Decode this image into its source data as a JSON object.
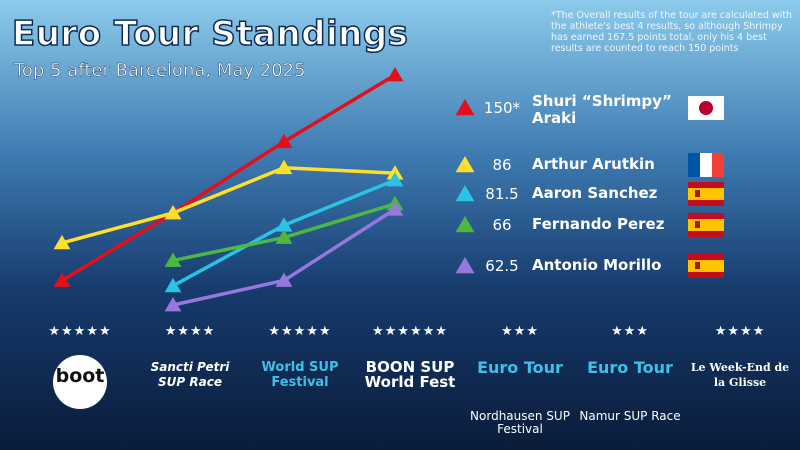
{
  "chart_data": {
    "type": "line",
    "title": "Euro Tour Standings",
    "subtitle": "Top 5 after Barcelona, May 2025",
    "footnote": "*The Overall results of the tour are calculated with the athlete's best 4 results, so although Shrimpy has earned 167.5 points total, only his 4 best results are counted to reach 150 points",
    "categories": [
      "boot",
      "Sancti Petri SUP Race",
      "World SUP Festival",
      "BOON SUP World Fest",
      "Euro Tour",
      "Euro Tour",
      "Le Week-End de la Glisse"
    ],
    "category_captions": [
      null,
      null,
      null,
      null,
      "Nordhausen SUP Festival",
      "Namur SUP Race",
      null
    ],
    "category_stars": [
      "★★★★★",
      "★★★★",
      "★★★★★",
      "★★★★★★",
      "★★★",
      "★★★",
      "★★★★"
    ],
    "ylim": [
      0,
      150
    ],
    "series": [
      {
        "name": "Shuri “Shrimpy” Araki",
        "color": "#e3101c",
        "values": [
          16,
          60,
          106.5,
          150,
          null,
          null,
          null
        ],
        "value_labels": [
          null,
          null,
          null,
          "150*",
          null,
          null,
          null
        ]
      },
      {
        "name": "Arthur Arutkin",
        "color": "#ffdf2e",
        "values": [
          40.5,
          60,
          89.5,
          86,
          null,
          null,
          null
        ],
        "value_labels": [
          null,
          null,
          null,
          "86",
          null,
          null,
          null
        ]
      },
      {
        "name": "Aaron Sanchez",
        "color": "#2ac3e8",
        "values": [
          null,
          12.5,
          52,
          81.5,
          null,
          null,
          null
        ],
        "value_labels": [
          null,
          null,
          null,
          "81.5",
          null,
          null,
          null
        ]
      },
      {
        "name": "Fernando Perez",
        "color": "#4cb842",
        "values": [
          null,
          29,
          44,
          66,
          null,
          null,
          null
        ],
        "value_labels": [
          null,
          null,
          null,
          "66",
          null,
          null,
          null
        ]
      },
      {
        "name": "Antonio Morillo",
        "color": "#9478de",
        "values": [
          null,
          0,
          16,
          62.5,
          null,
          null,
          null
        ],
        "value_labels": [
          null,
          null,
          null,
          "62.5",
          null,
          null,
          null
        ]
      }
    ]
  }
}
